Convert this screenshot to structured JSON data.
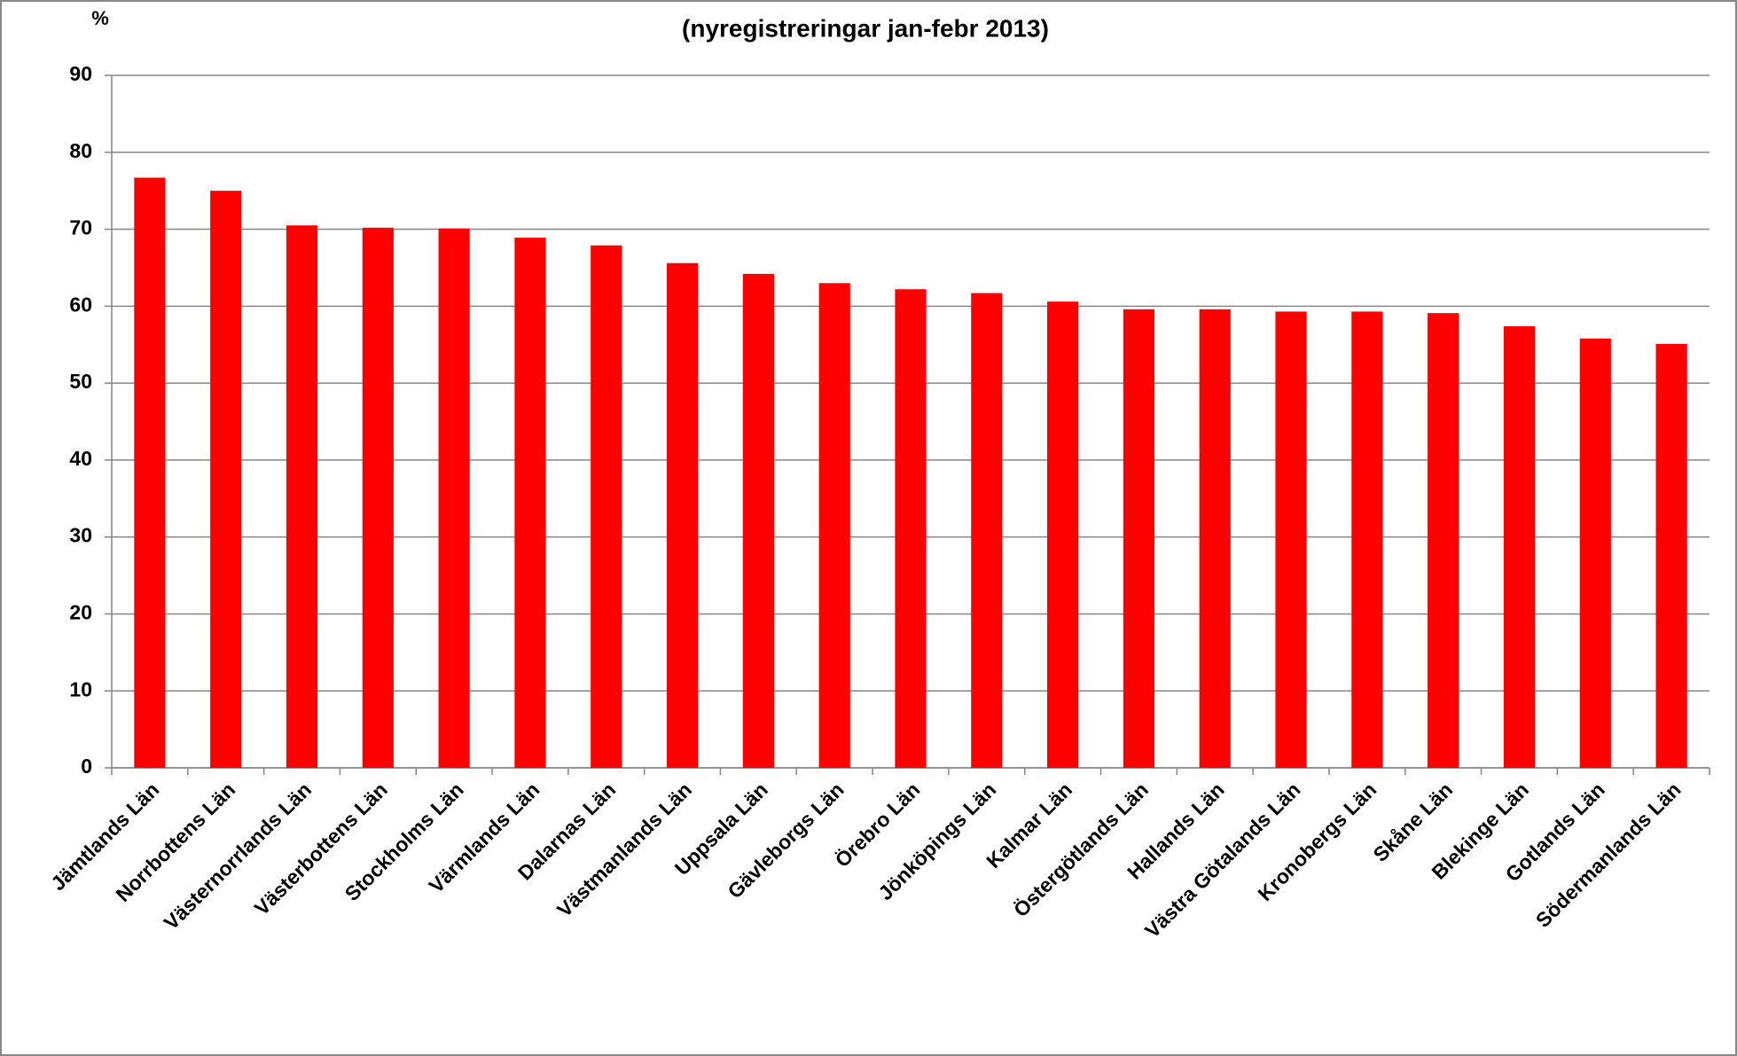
{
  "chart_data": {
    "type": "bar",
    "subtitle": "(nyregistreringar jan-febr 2013)",
    "ylabel": "%",
    "categories": [
      "Jämtlands Län",
      "Norrbottens Län",
      "Västernorrlands Län",
      "Västerbottens Län",
      "Stockholms Län",
      "Värmlands Län",
      "Dalarnas Län",
      "Västmanlands Län",
      "Uppsala Län",
      "Gävleborgs Län",
      "Örebro Län",
      "Jönköpings Län",
      "Kalmar Län",
      "Östergötlands Län",
      "Hallands Län",
      "Västra Götalands Län",
      "Kronobergs Län",
      "Skåne Län",
      "Blekinge Län",
      "Gotlands Län",
      "Södermanlands Län"
    ],
    "values": [
      76.7,
      75.0,
      70.5,
      70.2,
      70.1,
      68.9,
      67.9,
      65.6,
      64.2,
      63.0,
      62.2,
      61.7,
      60.6,
      59.6,
      59.6,
      59.3,
      59.3,
      59.1,
      57.4,
      55.8,
      55.1
    ],
    "color": "#ff0000",
    "ylim": [
      0,
      90
    ],
    "yticks": [
      0,
      10,
      20,
      30,
      40,
      50,
      60,
      70,
      80,
      90
    ],
    "grid": true
  }
}
